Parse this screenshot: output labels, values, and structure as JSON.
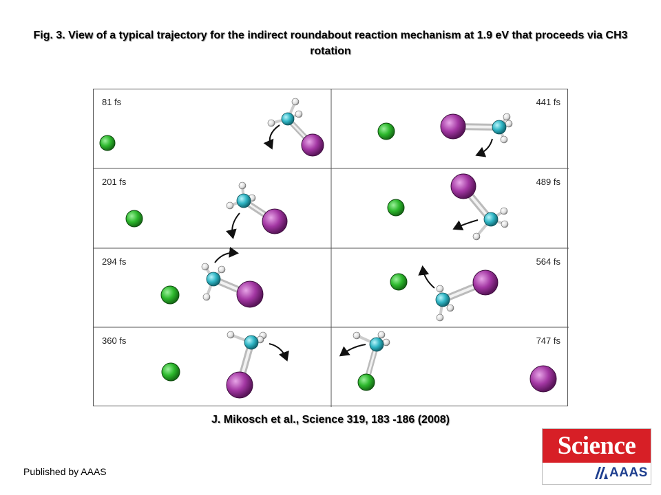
{
  "title": "Fig. 3. View of a typical trajectory for the indirect roundabout reaction mechanism at 1.9 eV that proceeds via CH3 rotation",
  "panels": {
    "p1": {
      "time": "81 fs"
    },
    "p2": {
      "time": "441 fs"
    },
    "p3": {
      "time": "201 fs"
    },
    "p4": {
      "time": "489 fs"
    },
    "p5": {
      "time": "294 fs"
    },
    "p6": {
      "time": "564 fs"
    },
    "p7": {
      "time": "360 fs"
    },
    "p8": {
      "time": "747 fs"
    }
  },
  "citation": "J.  Mikosch et al.,  Science  319, 183 -186 (2008)",
  "publisher": "Published by AAAS",
  "logo": {
    "top": "Science",
    "bottom": "AAAS"
  },
  "colors": {
    "chlorine": "#2db82d",
    "iodine": "#9a2f9a",
    "carbon": "#2fb5c4",
    "hydrogen": "#e0e0e0",
    "logo_red": "#d71f26",
    "logo_blue": "#1f3f8f"
  }
}
